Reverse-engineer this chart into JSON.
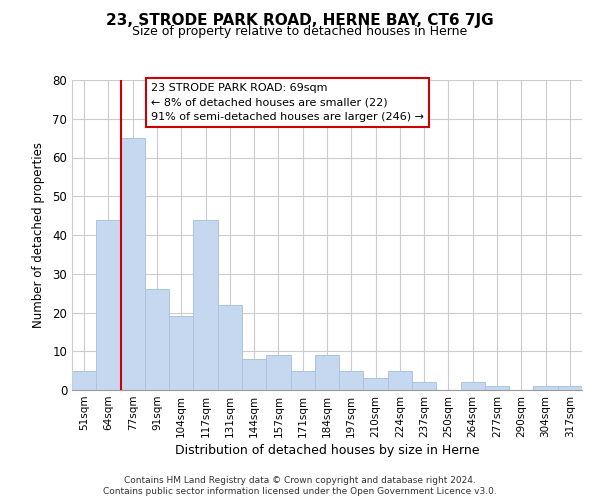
{
  "title": "23, STRODE PARK ROAD, HERNE BAY, CT6 7JG",
  "subtitle": "Size of property relative to detached houses in Herne",
  "xlabel": "Distribution of detached houses by size in Herne",
  "ylabel": "Number of detached properties",
  "bar_labels": [
    "51sqm",
    "64sqm",
    "77sqm",
    "91sqm",
    "104sqm",
    "117sqm",
    "131sqm",
    "144sqm",
    "157sqm",
    "171sqm",
    "184sqm",
    "197sqm",
    "210sqm",
    "224sqm",
    "237sqm",
    "250sqm",
    "264sqm",
    "277sqm",
    "290sqm",
    "304sqm",
    "317sqm"
  ],
  "bar_values": [
    5,
    44,
    65,
    26,
    19,
    44,
    22,
    8,
    9,
    5,
    9,
    5,
    3,
    5,
    2,
    0,
    2,
    1,
    0,
    1,
    1
  ],
  "bar_color": "#c5d8f0",
  "bar_edge_color": "#aac4e0",
  "ylim": [
    0,
    80
  ],
  "yticks": [
    0,
    10,
    20,
    30,
    40,
    50,
    60,
    70,
    80
  ],
  "property_line_color": "#cc0000",
  "annotation_title": "23 STRODE PARK ROAD: 69sqm",
  "annotation_line1": "← 8% of detached houses are smaller (22)",
  "annotation_line2": "91% of semi-detached houses are larger (246) →",
  "annotation_box_color": "#ffffff",
  "annotation_box_edge": "#cc0000",
  "footer_line1": "Contains HM Land Registry data © Crown copyright and database right 2024.",
  "footer_line2": "Contains public sector information licensed under the Open Government Licence v3.0.",
  "background_color": "#ffffff",
  "grid_color": "#cccccc"
}
